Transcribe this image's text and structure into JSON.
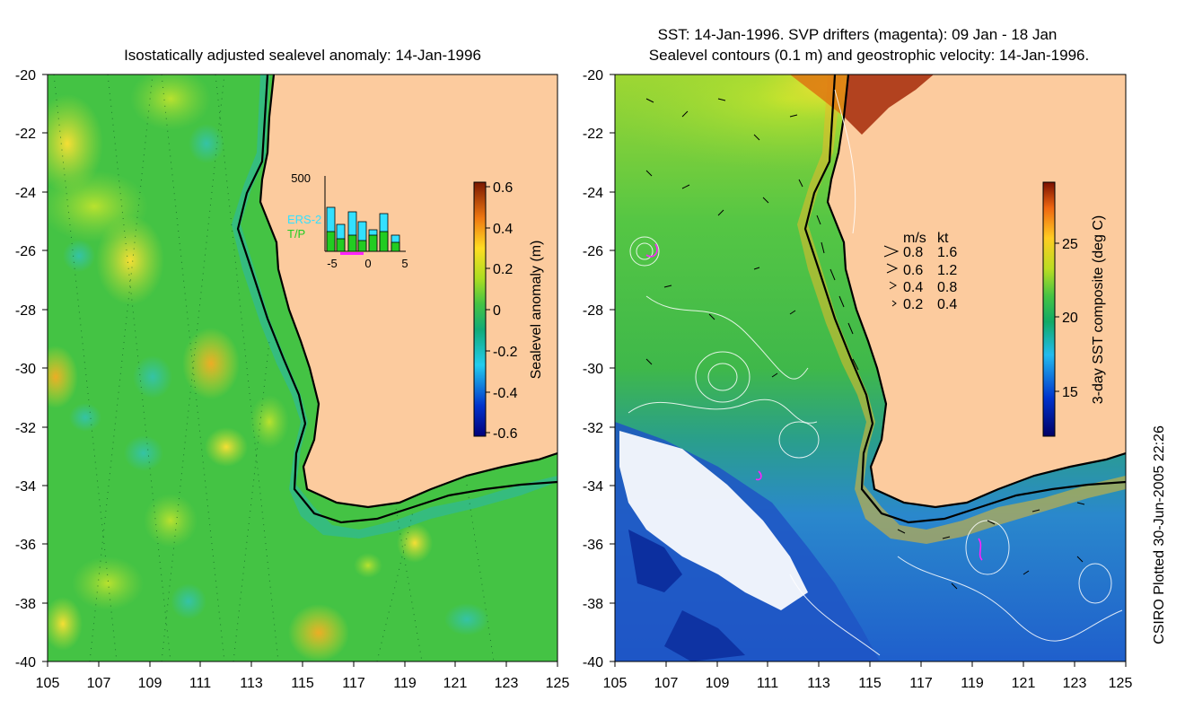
{
  "left_panel": {
    "title": "Isostatically adjusted sealevel anomaly: 14-Jan-1996",
    "y_ticks": [
      "-20",
      "-22",
      "-24",
      "-26",
      "-28",
      "-30",
      "-32",
      "-34",
      "-36",
      "-38",
      "-40"
    ],
    "x_ticks": [
      "105",
      "107",
      "109",
      "111",
      "113",
      "115",
      "117",
      "119",
      "121",
      "123",
      "125"
    ],
    "colorbar": {
      "label": "Sealevel anomaly (m)",
      "ticks": [
        "0.6",
        "0.4",
        "0.2",
        "0",
        "-0.2",
        "-0.4",
        "-0.6"
      ]
    },
    "inset": {
      "y_max_label": "500",
      "series_a": "ERS-2",
      "series_b": "T/P",
      "x_ticks": [
        "-5",
        "0",
        "5"
      ],
      "series_a_color": "#33e0ff",
      "series_b_color": "#22cc22",
      "marker_color": "#ff22ff"
    }
  },
  "right_panel": {
    "title_line1": "SST: 14-Jan-1996. SVP drifters (magenta): 09 Jan - 18 Jan",
    "title_line2": "Sealevel contours (0.1 m) and geostrophic velocity: 14-Jan-1996.",
    "y_ticks": [
      "-20",
      "-22",
      "-24",
      "-26",
      "-28",
      "-30",
      "-32",
      "-34",
      "-36",
      "-38",
      "-40"
    ],
    "x_ticks": [
      "105",
      "107",
      "109",
      "111",
      "113",
      "115",
      "117",
      "119",
      "121",
      "123",
      "125"
    ],
    "colorbar": {
      "label": "3-day SST composite (deg C)",
      "ticks": [
        "25",
        "20",
        "15"
      ]
    },
    "velocity_legend": {
      "header_ms": "m/s",
      "header_kt": "kt",
      "rows": [
        {
          "ms": "0.8",
          "kt": "1.6"
        },
        {
          "ms": "0.6",
          "kt": "1.2"
        },
        {
          "ms": "0.4",
          "kt": "0.8"
        },
        {
          "ms": "0.2",
          "kt": "0.4"
        }
      ]
    }
  },
  "credit": "CSIRO Plotted 30-Jun-2005 22:26",
  "colors": {
    "land": "#fccb9e",
    "ocean_green": "#44c344",
    "coast": "#000000"
  }
}
